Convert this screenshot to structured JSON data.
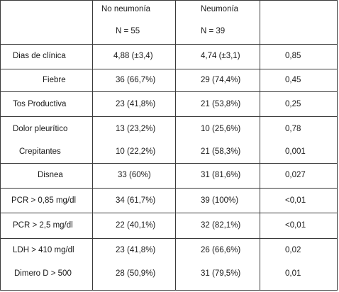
{
  "header": {
    "col2_line1": "No neumonía",
    "col2_line2": "N = 55",
    "col3_line1": "Neumonía",
    "col3_line2": "N = 39",
    "col4_line1": ""
  },
  "rows": [
    {
      "label": "Dias de clínica",
      "no_neumonia": "4,88 (±3,4)",
      "neumonia": "4,74 (±3,1)",
      "p": "0,85"
    },
    {
      "label": "Fiebre",
      "no_neumonia": "36 (66,7%)",
      "neumonia": "29 (74,4%)",
      "p": "0,45"
    },
    {
      "label": "Tos Productiva",
      "no_neumonia": "23 (41,8%)",
      "neumonia": "21 (53,8%)",
      "p": "0,25"
    },
    {
      "label": "Dolor pleurítico",
      "no_neumonia": "13 (23,2%)",
      "neumonia": "10 (25,6%)",
      "p": "0,78"
    },
    {
      "label": "Crepitantes",
      "no_neumonia": "10 (22,2%)",
      "neumonia": "21 (58,3%)",
      "p": "0,001"
    },
    {
      "label": "Disnea",
      "no_neumonia": "33 (60%)",
      "neumonia": "31 (81,6%)",
      "p": "0,027"
    },
    {
      "label": "PCR > 0,85 mg/dl",
      "no_neumonia": "34 (61,7%)",
      "neumonia": "39 (100%)",
      "p": "<0,01"
    },
    {
      "label": "PCR > 2,5 mg/dl",
      "no_neumonia": "22 (40,1%)",
      "neumonia": "32 (82,1%)",
      "p": "<0,01"
    },
    {
      "label": "LDH > 410 mg/dl",
      "no_neumonia": "23 (41,8%)",
      "neumonia": "26 (66,6%)",
      "p": "0,02"
    },
    {
      "label": "Dimero D > 500",
      "no_neumonia": "28 (50,9%)",
      "neumonia": "31 (79,5%)",
      "p": "0,01"
    }
  ]
}
